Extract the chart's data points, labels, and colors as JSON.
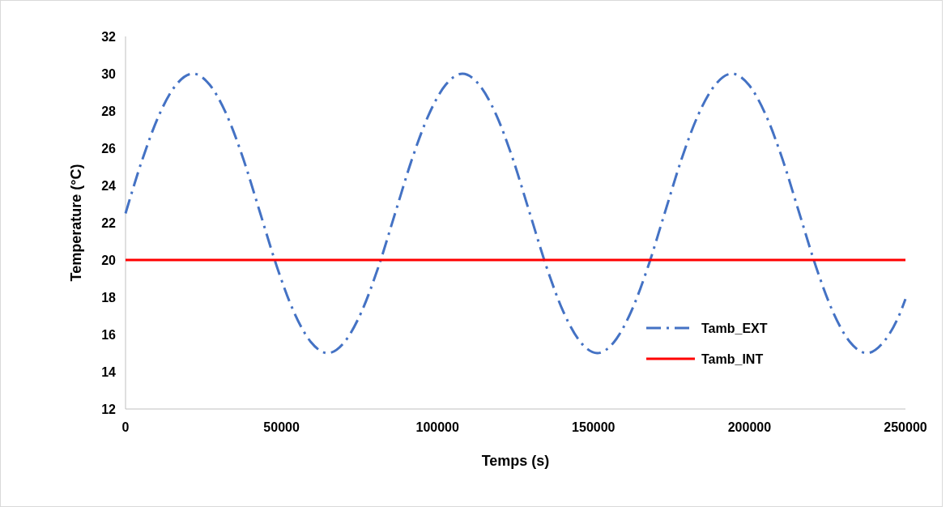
{
  "chart_data": {
    "type": "line",
    "xlabel": "Temps (s)",
    "ylabel": "Temperature (°C)",
    "xlim": [
      0,
      250000
    ],
    "xticks": [
      0,
      50000,
      100000,
      150000,
      200000,
      250000
    ],
    "ylim": [
      12,
      32
    ],
    "yticks": [
      12,
      14,
      16,
      18,
      20,
      22,
      24,
      26,
      28,
      30,
      32
    ],
    "grid": false,
    "legend": "bottom right",
    "marker": "none",
    "series": [
      {
        "name": "Tamb_EXT",
        "color": "#4472c4",
        "line_style": "dashed",
        "x": [
          0,
          5400,
          10800,
          16200,
          21600,
          27000,
          32400,
          37800,
          43200,
          48600,
          54000,
          59400,
          64800,
          70200,
          75600,
          81000,
          86400,
          91800,
          97200,
          102600,
          108000,
          113400,
          118800,
          124200,
          129600,
          135000,
          140400,
          145800,
          151200,
          156600,
          162000,
          167400,
          172800,
          178200,
          183600,
          189000,
          194400,
          199800,
          205200,
          210600,
          216000,
          221400,
          226800,
          232200,
          237600,
          243000,
          248400,
          250000
        ],
        "values": [
          22.5,
          25.4,
          27.8,
          29.4,
          30,
          29.4,
          27.8,
          25.4,
          22.5,
          19.6,
          17.2,
          15.6,
          15,
          15.6,
          17.2,
          19.6,
          22.5,
          25.4,
          27.8,
          29.4,
          30,
          29.4,
          27.8,
          25.4,
          22.5,
          19.6,
          17.2,
          15.6,
          15,
          15.6,
          17.2,
          19.6,
          22.5,
          25.4,
          27.8,
          29.4,
          30,
          29.4,
          27.8,
          25.4,
          22.5,
          19.6,
          17.2,
          15.6,
          15,
          15.6,
          17.2,
          17.9
        ]
      },
      {
        "name": "Tamb_INT",
        "color": "#ff0000",
        "line_style": "solid",
        "x": [
          0,
          250000
        ],
        "values": [
          20,
          20
        ]
      }
    ]
  }
}
